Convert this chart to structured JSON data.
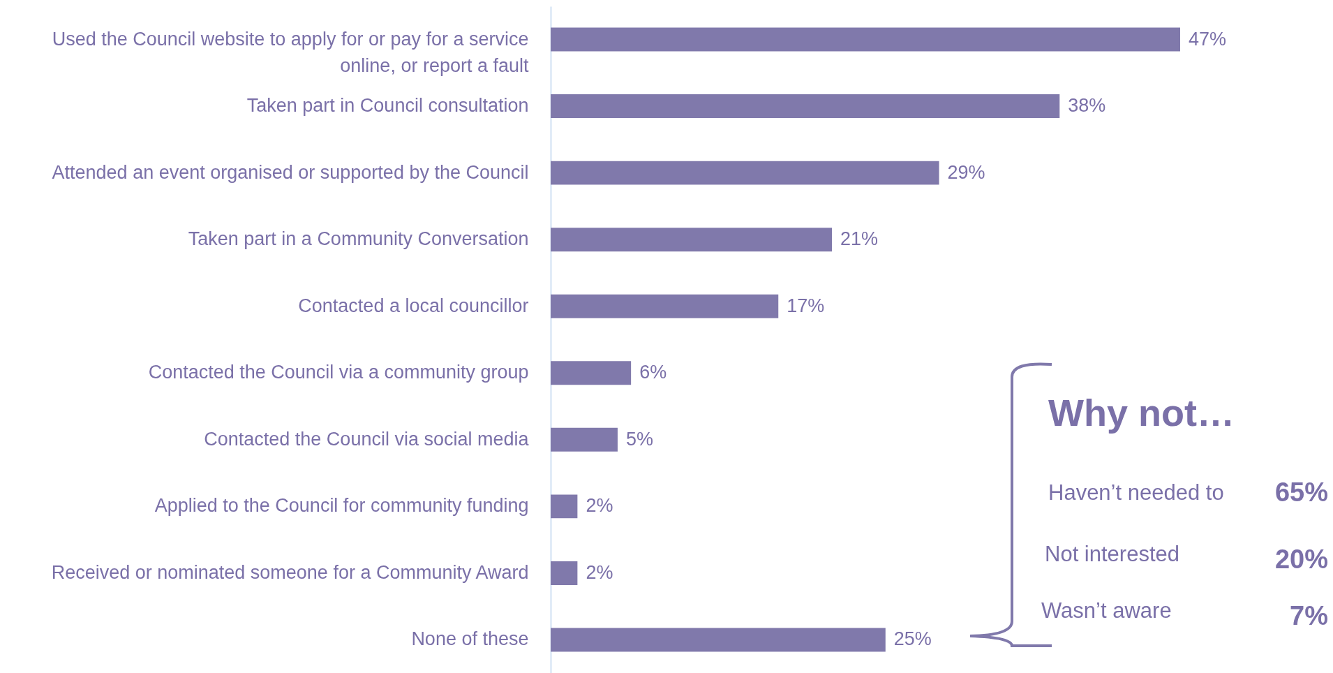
{
  "chart_data": {
    "type": "bar",
    "orientation": "horizontal",
    "data_labels": true,
    "color": "#8079ab",
    "categories": [
      "Used the Council website to apply for or pay for a service online, or report a fault",
      "Taken part in Council consultation",
      "Attended an event organised or supported by the Council",
      "Taken part in a Community Conversation",
      "Contacted a local councillor",
      "Contacted the Council via a community group",
      "Contacted the Council via social media",
      "Applied to the Council for community funding",
      "Received or nominated someone for a Community Award",
      "None of these"
    ],
    "values": [
      47,
      38,
      29,
      21,
      17,
      6,
      5,
      2,
      2,
      25
    ],
    "value_labels": [
      "47%",
      "38%",
      "29%",
      "21%",
      "17%",
      "6%",
      "5%",
      "2%",
      "2%",
      "25%"
    ],
    "annotations": [
      "Why not…",
      "Haven’t needed to",
      "65%",
      "Not interested",
      "20%",
      "Wasn’t aware",
      "7%"
    ]
  }
}
